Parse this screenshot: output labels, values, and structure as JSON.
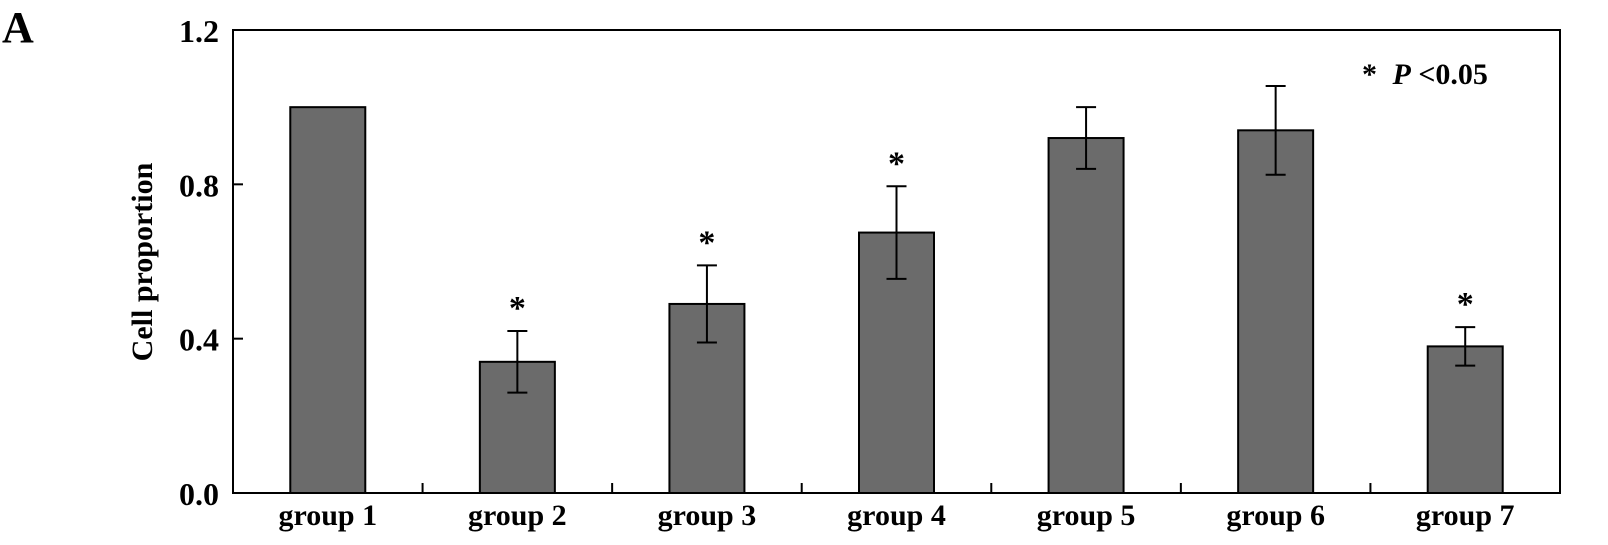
{
  "panel_label": "A",
  "significance_note": {
    "marker": "*",
    "p": "P",
    "rest": "<0.05"
  },
  "chart_data": {
    "type": "bar",
    "categories": [
      "group 1",
      "group 2",
      "group 3",
      "group 4",
      "group 5",
      "group 6",
      "group 7"
    ],
    "values": [
      1.0,
      0.34,
      0.49,
      0.675,
      0.92,
      0.94,
      0.38
    ],
    "errors": [
      0,
      0.08,
      0.1,
      0.12,
      0.08,
      0.115,
      0.05
    ],
    "significant": [
      false,
      true,
      true,
      true,
      false,
      false,
      true
    ],
    "ylabel": "Cell proportion",
    "ylim": [
      0,
      1.2
    ],
    "yticks": [
      0,
      0.4,
      0.8,
      1.2
    ],
    "ytick_labels": [
      "0.0",
      "0.4",
      "0.8",
      "1.2"
    ],
    "grid": false,
    "bar_color": "#6b6b6b",
    "significance_symbol": "*"
  }
}
